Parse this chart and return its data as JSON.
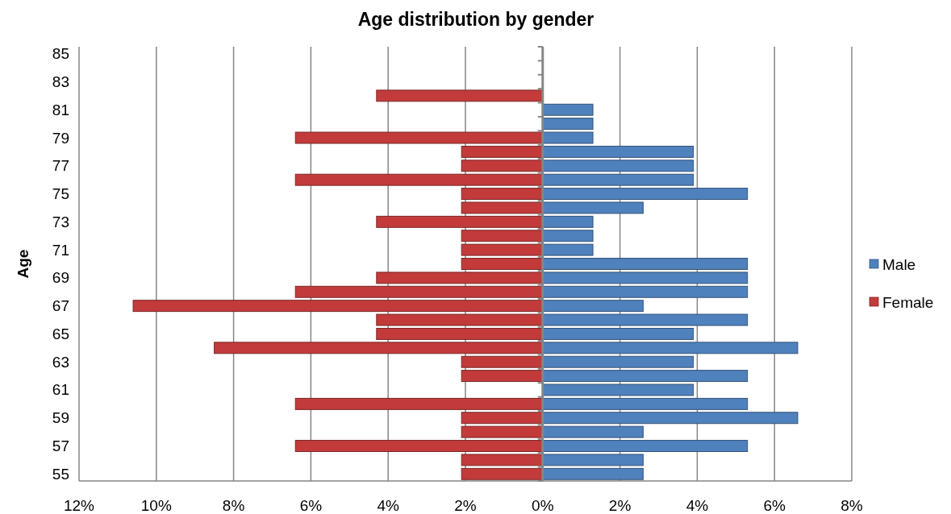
{
  "chart_data": {
    "type": "bar",
    "orientation": "horizontal",
    "stacked": true,
    "title": "Age distribution by gender",
    "ylabel": "Age",
    "categories": [
      "85",
      null,
      "83",
      null,
      "81",
      null,
      "79",
      null,
      "77",
      null,
      "75",
      null,
      "73",
      null,
      "71",
      null,
      "69",
      null,
      "67",
      null,
      "65",
      null,
      "63",
      null,
      "61",
      null,
      "59",
      null,
      "57",
      null,
      "55"
    ],
    "series": [
      {
        "name": "Male",
        "color": "#4f81bd",
        "values": [
          null,
          null,
          null,
          null,
          1.3,
          1.3,
          1.3,
          3.9,
          3.9,
          3.9,
          5.3,
          2.6,
          1.3,
          1.3,
          1.3,
          5.3,
          5.3,
          5.3,
          2.6,
          5.3,
          3.9,
          6.6,
          3.9,
          5.3,
          3.9,
          5.3,
          6.6,
          2.6,
          5.3,
          2.6,
          2.6
        ]
      },
      {
        "name": "Female",
        "color": "#c23b3a",
        "values": [
          null,
          null,
          null,
          -4.3,
          null,
          null,
          -6.4,
          -2.1,
          -2.1,
          -6.4,
          -2.1,
          -2.1,
          -4.3,
          -2.1,
          -2.1,
          -2.1,
          -4.3,
          -6.4,
          -10.6,
          -4.3,
          -4.3,
          -8.5,
          -2.1,
          -2.1,
          null,
          -6.4,
          -2.1,
          -2.1,
          -6.4,
          -2.1,
          -2.1
        ]
      }
    ],
    "xlim": [
      -12,
      8
    ],
    "xticks": [
      {
        "value": -12,
        "label": "12%"
      },
      {
        "value": -10,
        "label": "10%"
      },
      {
        "value": -8,
        "label": "8%"
      },
      {
        "value": -6,
        "label": "6%"
      },
      {
        "value": -4,
        "label": "4%"
      },
      {
        "value": -2,
        "label": "2%"
      },
      {
        "value": 0,
        "label": "0%"
      },
      {
        "value": 2,
        "label": "2%"
      },
      {
        "value": 4,
        "label": "4%"
      },
      {
        "value": 6,
        "label": "6%"
      },
      {
        "value": 8,
        "label": "8%"
      }
    ],
    "grid": "x",
    "legend": "right"
  }
}
